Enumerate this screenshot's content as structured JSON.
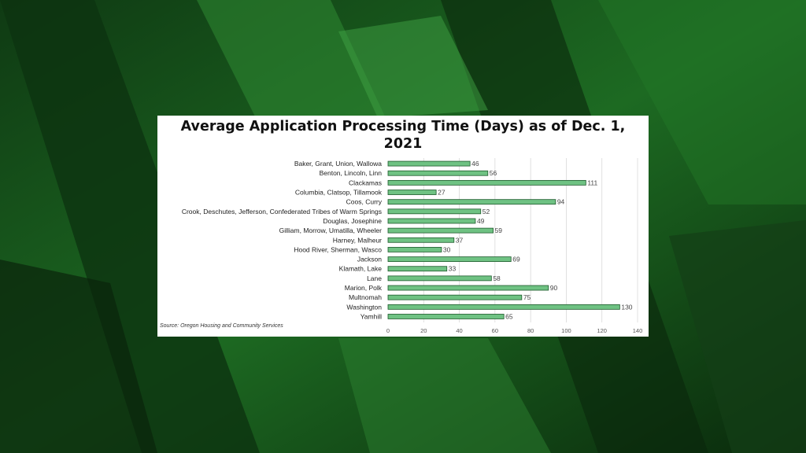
{
  "colors": {
    "bar": "#6fc283",
    "bar_stroke": "#1e5a2c",
    "grid": "#d9d9d9"
  },
  "chart_data": {
    "type": "bar",
    "orientation": "horizontal",
    "title_line1": "Average Application Processing Time (Days) as of Dec. 1,",
    "title_line2": "2021",
    "source": "Source: Oregon Housing and Community Services",
    "categories": [
      "Baker, Grant, Union, Wallowa",
      "Benton, Lincoln, Linn",
      "Clackamas",
      "Columbia, Clatsop, Tillamook",
      "Coos, Curry",
      "Crook, Deschutes, Jefferson, Confederated Tribes of Warm Springs",
      "Douglas, Josephine",
      "Gilliam, Morrow, Umatilla, Wheeler",
      "Harney, Malheur",
      "Hood River, Sherman, Wasco",
      "Jackson",
      "Klamath, Lake",
      "Lane",
      "Marion, Polk",
      "Multnomah",
      "Washington",
      "Yamhill"
    ],
    "values": [
      46,
      56,
      111,
      27,
      94,
      52,
      49,
      59,
      37,
      30,
      69,
      33,
      58,
      90,
      75,
      130,
      65
    ],
    "xlim": [
      0,
      140
    ],
    "xticks": [
      0,
      20,
      40,
      60,
      80,
      100,
      120,
      140
    ],
    "grid": true,
    "legend": "none"
  }
}
